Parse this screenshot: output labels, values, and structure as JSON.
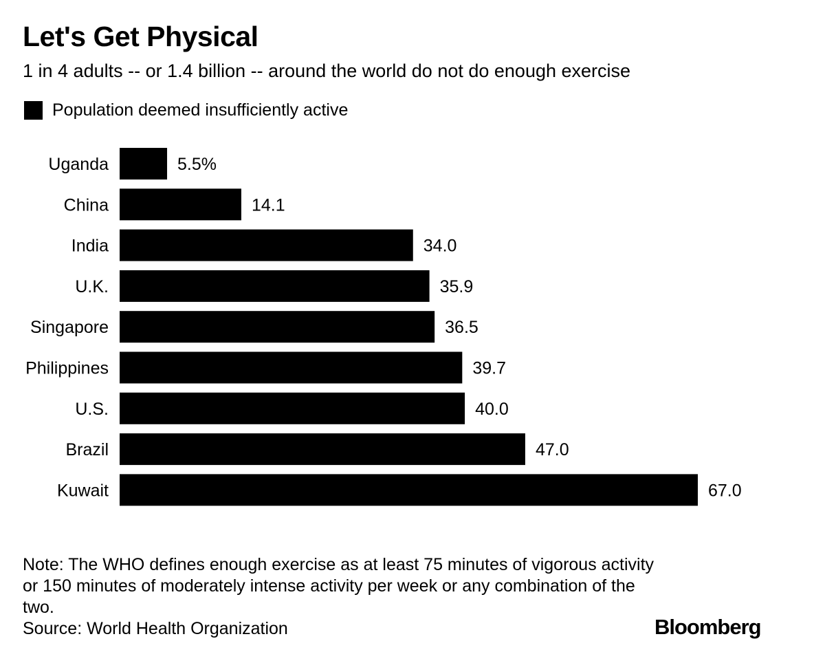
{
  "header": {
    "title": "Let's Get Physical",
    "subtitle": "1 in 4 adults -- or 1.4 billion -- around the world do not do enough exercise"
  },
  "legend": {
    "label": "Population deemed insufficiently active",
    "color": "#000000"
  },
  "chart_data": {
    "type": "bar",
    "orientation": "horizontal",
    "title": "Let's Get Physical",
    "subtitle": "1 in 4 adults -- or 1.4 billion -- around the world do not do enough exercise",
    "categories": [
      "Uganda",
      "China",
      "India",
      "U.K.",
      "Singapore",
      "Philippines",
      "U.S.",
      "Brazil",
      "Kuwait"
    ],
    "series": [
      {
        "name": "Population deemed insufficiently active",
        "values": [
          5.5,
          14.1,
          34.0,
          35.9,
          36.5,
          39.7,
          40.0,
          47.0,
          67.0
        ],
        "labels": [
          "5.5%",
          "14.1",
          "34.0",
          "35.9",
          "36.5",
          "39.7",
          "40.0",
          "47.0",
          "67.0"
        ],
        "color": "#000000"
      }
    ],
    "xlim": [
      0,
      67.0
    ],
    "xlabel": "",
    "ylabel": "",
    "grid": false,
    "legend_position": "top-left"
  },
  "footer": {
    "note": "Note: The WHO defines enough exercise as at least 75 minutes of vigorous activity or 150 minutes of moderately intense activity per week or any combination of the two.",
    "source": "Source: World Health Organization",
    "brand": "Bloomberg"
  }
}
